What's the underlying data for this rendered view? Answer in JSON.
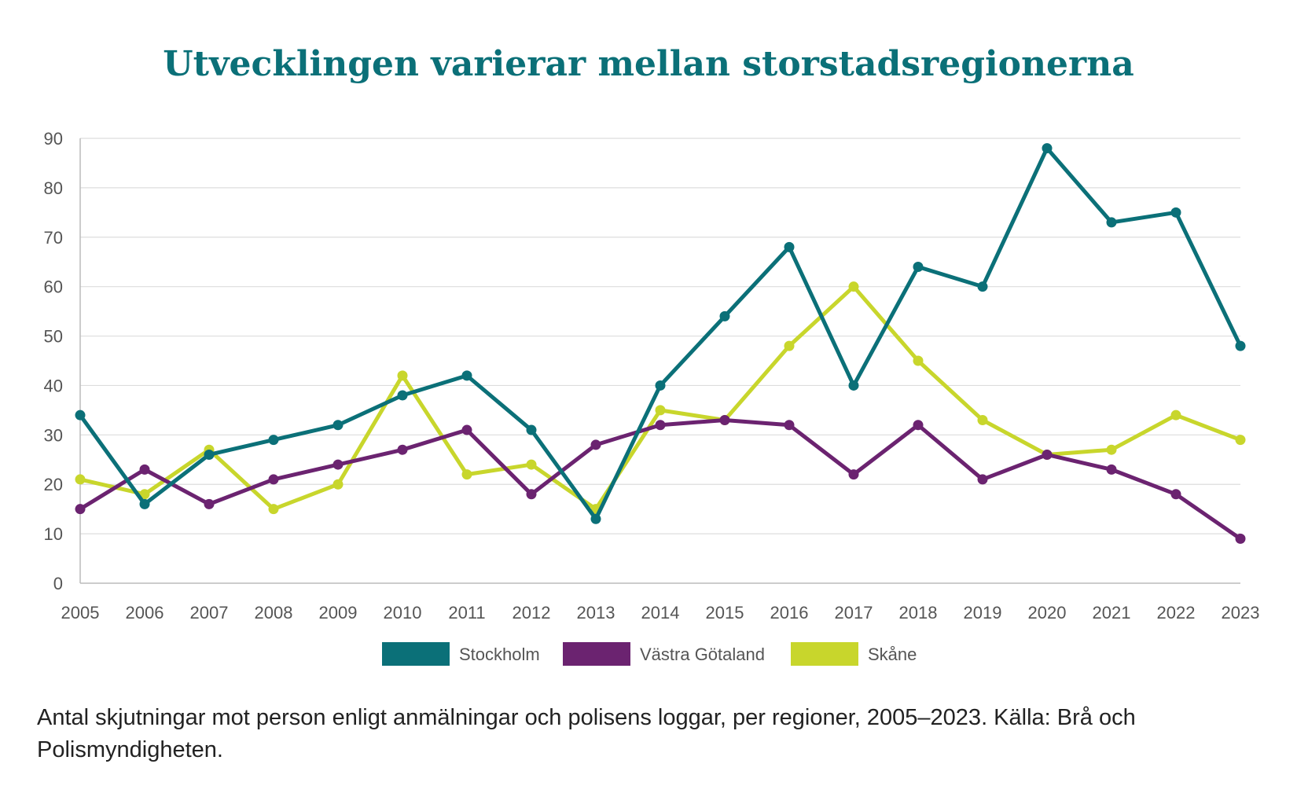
{
  "chart_data": {
    "type": "line",
    "title": "Utvecklingen varierar mellan storstadsregionerna",
    "caption": "Antal skjutningar mot person enligt anmälningar och polisens loggar, per regioner, 2005–2023. Källa: Brå och Polismyndigheten.",
    "x": [
      "2005",
      "2006",
      "2007",
      "2008",
      "2009",
      "2010",
      "2011",
      "2012",
      "2013",
      "2014",
      "2015",
      "2016",
      "2017",
      "2018",
      "2019",
      "2020",
      "2021",
      "2022",
      "2023"
    ],
    "ylim": [
      0,
      90
    ],
    "yticks": [
      "0",
      "10",
      "20",
      "30",
      "40",
      "50",
      "60",
      "70",
      "80",
      "90"
    ],
    "grid": true,
    "legend_position": "bottom-center",
    "series": [
      {
        "name": "Stockholm",
        "color": "#0b7078",
        "values": [
          34,
          16,
          26,
          29,
          32,
          38,
          42,
          31,
          13,
          40,
          54,
          68,
          40,
          64,
          60,
          88,
          73,
          75,
          48
        ]
      },
      {
        "name": "Västra Götaland",
        "color": "#6b2370",
        "values": [
          15,
          23,
          16,
          21,
          24,
          27,
          31,
          18,
          28,
          32,
          33,
          32,
          22,
          32,
          21,
          26,
          23,
          18,
          9
        ]
      },
      {
        "name": "Skåne",
        "color": "#c8d62c",
        "values": [
          21,
          18,
          27,
          15,
          20,
          42,
          22,
          24,
          15,
          35,
          33,
          48,
          60,
          45,
          33,
          26,
          27,
          34,
          29
        ]
      }
    ]
  }
}
